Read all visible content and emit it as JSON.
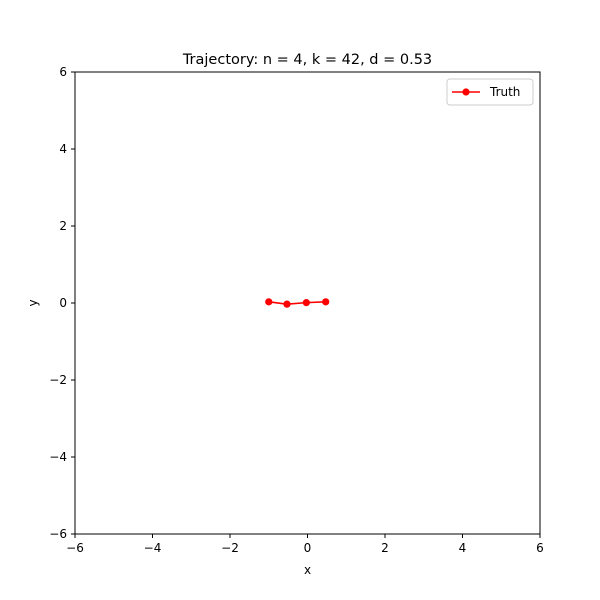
{
  "chart_data": {
    "type": "line",
    "title": "Trajectory: n = 4, k = 42, d = 0.53",
    "xlabel": "x",
    "ylabel": "y",
    "xlim": [
      -6,
      6
    ],
    "ylim": [
      -6,
      6
    ],
    "xticks": [
      -6,
      -4,
      -2,
      0,
      2,
      4,
      6
    ],
    "yticks": [
      -6,
      -4,
      -2,
      0,
      2,
      4,
      6
    ],
    "xtick_labels": [
      "−6",
      "−4",
      "−2",
      "0",
      "2",
      "4",
      "6"
    ],
    "ytick_labels": [
      "−6",
      "−4",
      "−2",
      "0",
      "2",
      "4",
      "6"
    ],
    "grid": false,
    "legend": {
      "placement": "top-right",
      "entries": [
        "Truth"
      ]
    },
    "series": [
      {
        "name": "Truth",
        "color": "#ff0000",
        "marker": "circle",
        "x": [
          -1.0,
          -0.53,
          -0.03,
          0.47
        ],
        "y": [
          0.03,
          -0.03,
          0.01,
          0.03
        ]
      }
    ]
  }
}
